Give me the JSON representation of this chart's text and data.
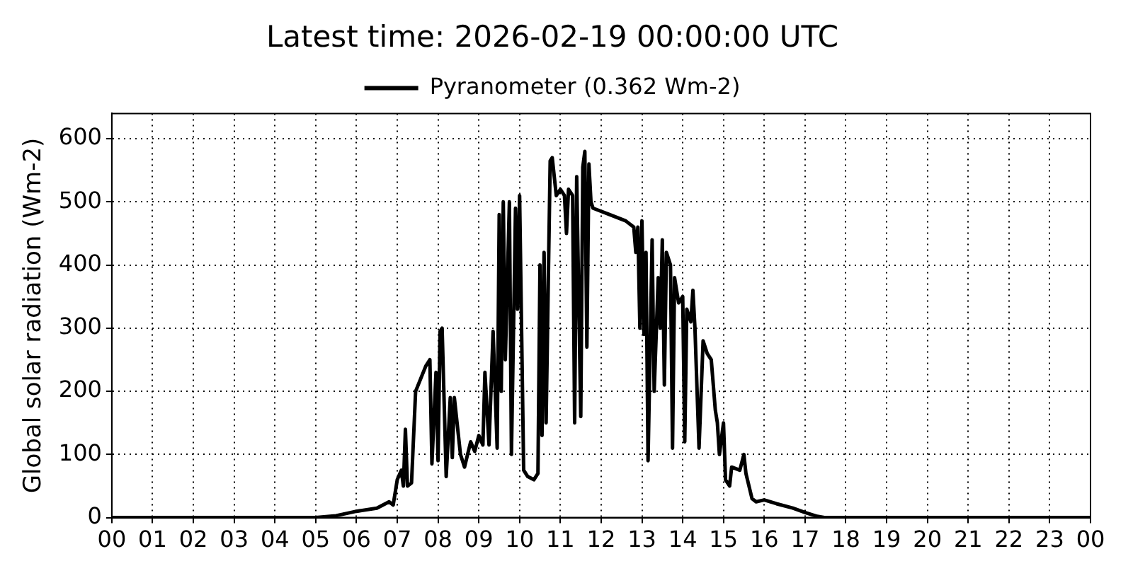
{
  "chart_data": {
    "type": "line",
    "title": "Latest time: 2026-02-19 00:00:00 UTC",
    "ylabel": "Global solar radiation (Wm-2)",
    "x": [
      0,
      5,
      5.5,
      6,
      6.5,
      6.8,
      6.9,
      7,
      7.1,
      7.15,
      7.2,
      7.25,
      7.35,
      7.45,
      7.7,
      7.8,
      7.85,
      7.95,
      8,
      8.05,
      8.1,
      8.2,
      8.3,
      8.35,
      8.4,
      8.55,
      8.65,
      8.8,
      8.9,
      9,
      9.1,
      9.15,
      9.25,
      9.35,
      9.45,
      9.5,
      9.55,
      9.6,
      9.65,
      9.75,
      9.8,
      9.9,
      9.95,
      10,
      10.1,
      10.2,
      10.35,
      10.45,
      10.5,
      10.55,
      10.6,
      10.65,
      10.75,
      10.8,
      10.9,
      11,
      11.1,
      11.15,
      11.2,
      11.3,
      11.35,
      11.4,
      11.5,
      11.55,
      11.6,
      11.65,
      11.7,
      11.75,
      11.8,
      12.2,
      12.6,
      12.8,
      12.85,
      12.9,
      12.95,
      13,
      13.05,
      13.1,
      13.15,
      13.25,
      13.3,
      13.4,
      13.45,
      13.5,
      13.55,
      13.6,
      13.7,
      13.75,
      13.8,
      13.9,
      14,
      14.05,
      14.1,
      14.2,
      14.25,
      14.3,
      14.4,
      14.5,
      14.6,
      14.7,
      14.8,
      14.85,
      14.9,
      15,
      15.05,
      15.15,
      15.2,
      15.4,
      15.5,
      15.55,
      15.7,
      15.8,
      16,
      16.3,
      16.7,
      17,
      17.3,
      17.5,
      24
    ],
    "series": [
      {
        "name": "Pyranometer (0.362 Wm-2)",
        "color": "#000000",
        "values": [
          0,
          0,
          3,
          10,
          15,
          25,
          20,
          60,
          75,
          50,
          140,
          50,
          55,
          200,
          240,
          250,
          85,
          230,
          90,
          295,
          300,
          65,
          190,
          95,
          190,
          100,
          80,
          120,
          105,
          130,
          115,
          230,
          115,
          295,
          110,
          480,
          200,
          500,
          250,
          500,
          100,
          490,
          330,
          510,
          75,
          65,
          60,
          70,
          400,
          130,
          420,
          150,
          565,
          570,
          510,
          520,
          510,
          450,
          520,
          510,
          150,
          540,
          160,
          555,
          580,
          270,
          560,
          500,
          490,
          480,
          470,
          460,
          420,
          460,
          300,
          470,
          290,
          420,
          90,
          440,
          200,
          380,
          300,
          440,
          210,
          420,
          400,
          110,
          380,
          340,
          350,
          120,
          330,
          310,
          360,
          300,
          110,
          280,
          260,
          250,
          170,
          150,
          100,
          150,
          60,
          50,
          80,
          75,
          100,
          70,
          30,
          25,
          28,
          22,
          15,
          8,
          2,
          0,
          0
        ]
      }
    ],
    "xlim": [
      0,
      24
    ],
    "xticks": [
      {
        "value": 0,
        "label": "00"
      },
      {
        "value": 1,
        "label": "01"
      },
      {
        "value": 2,
        "label": "02"
      },
      {
        "value": 3,
        "label": "03"
      },
      {
        "value": 4,
        "label": "04"
      },
      {
        "value": 5,
        "label": "05"
      },
      {
        "value": 6,
        "label": "06"
      },
      {
        "value": 7,
        "label": "07"
      },
      {
        "value": 8,
        "label": "08"
      },
      {
        "value": 9,
        "label": "09"
      },
      {
        "value": 10,
        "label": "10"
      },
      {
        "value": 11,
        "label": "11"
      },
      {
        "value": 12,
        "label": "12"
      },
      {
        "value": 13,
        "label": "13"
      },
      {
        "value": 14,
        "label": "14"
      },
      {
        "value": 15,
        "label": "15"
      },
      {
        "value": 16,
        "label": "16"
      },
      {
        "value": 17,
        "label": "17"
      },
      {
        "value": 18,
        "label": "18"
      },
      {
        "value": 19,
        "label": "19"
      },
      {
        "value": 20,
        "label": "20"
      },
      {
        "value": 21,
        "label": "21"
      },
      {
        "value": 22,
        "label": "22"
      },
      {
        "value": 23,
        "label": "23"
      },
      {
        "value": 24,
        "label": "00"
      }
    ],
    "ylim": [
      0,
      640
    ],
    "yticks": [
      0,
      100,
      200,
      300,
      400,
      500,
      600
    ],
    "grid": true,
    "legend": "top",
    "marker": "none",
    "line_style": "solid"
  }
}
